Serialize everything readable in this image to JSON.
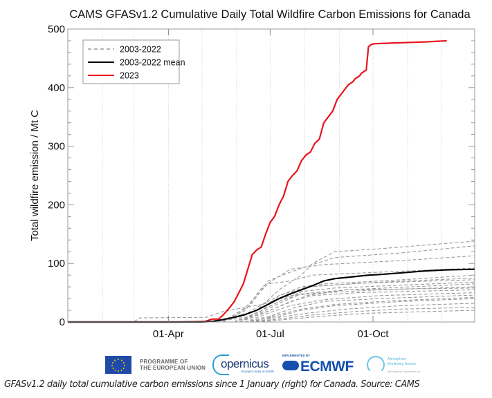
{
  "chart_data": {
    "type": "line",
    "title": "CAMS GFASv1.2 Cumulative Daily Total Wildfire Carbon Emissions for Canada",
    "xlabel": "",
    "ylabel": "Total wildfire emission / Mt C",
    "xlim": [
      1,
      365
    ],
    "ylim": [
      0,
      500
    ],
    "x_unit": "day of year",
    "yticks": [
      0,
      100,
      200,
      300,
      400,
      500
    ],
    "ytick_labels": [
      "0",
      "100",
      "200",
      "300",
      "400",
      "500"
    ],
    "xticks": [
      91,
      182,
      274
    ],
    "xtick_labels": [
      "01-Apr",
      "01-Jul",
      "01-Oct"
    ],
    "grid": true,
    "legend_position": "top-left",
    "legend": [
      {
        "label": "2003-2022",
        "style": "dashed",
        "color": "#888888"
      },
      {
        "label": "2003-2022 mean",
        "style": "solid",
        "color": "#000000"
      },
      {
        "label": "2023",
        "style": "solid",
        "color": "#e8141c"
      }
    ],
    "series": [
      {
        "name": "2023",
        "color": "#e8141c",
        "x": [
          1,
          60,
          100,
          124,
          130,
          136,
          140,
          146,
          150,
          154,
          158,
          162,
          166,
          170,
          174,
          178,
          182,
          186,
          190,
          194,
          198,
          202,
          206,
          210,
          214,
          218,
          222,
          226,
          230,
          234,
          238,
          242,
          246,
          250,
          252,
          256,
          258,
          262,
          264,
          268,
          270,
          273,
          276,
          290,
          320,
          340
        ],
        "values": [
          0,
          0,
          0,
          1,
          5,
          5,
          12,
          25,
          35,
          50,
          65,
          90,
          115,
          123,
          128,
          150,
          170,
          180,
          200,
          215,
          240,
          250,
          258,
          275,
          285,
          290,
          305,
          312,
          340,
          350,
          360,
          380,
          390,
          400,
          405,
          410,
          415,
          420,
          425,
          430,
          470,
          474,
          475,
          476,
          478,
          480
        ]
      },
      {
        "name": "2003-2022 mean",
        "color": "#000000",
        "x": [
          1,
          120,
          130,
          140,
          150,
          160,
          170,
          180,
          190,
          200,
          210,
          220,
          230,
          240,
          250,
          260,
          270,
          280,
          300,
          320,
          340,
          365
        ],
        "values": [
          0,
          0,
          1,
          4,
          8,
          13,
          20,
          30,
          40,
          48,
          55,
          62,
          70,
          74,
          76,
          78,
          80,
          81,
          84,
          87,
          89,
          90
        ]
      },
      {
        "name": "2003-2022",
        "style": "dashed",
        "x": [
          1,
          60,
          65,
          125,
          140,
          160,
          175,
          200,
          230,
          280,
          365
        ],
        "values": [
          0,
          0,
          7,
          8,
          18,
          25,
          30,
          45,
          50,
          55,
          60
        ]
      },
      {
        "name": "2003-2022",
        "style": "dashed",
        "x": [
          1,
          130,
          150,
          170,
          190,
          210,
          220,
          240,
          280,
          365
        ],
        "values": [
          0,
          0,
          5,
          20,
          55,
          80,
          100,
          120,
          125,
          138
        ]
      },
      {
        "name": "2003-2022",
        "style": "dashed",
        "x": [
          1,
          130,
          150,
          165,
          180,
          200,
          215,
          240,
          300,
          365
        ],
        "values": [
          0,
          0,
          10,
          30,
          70,
          85,
          95,
          110,
          118,
          130
        ]
      },
      {
        "name": "2003-2022",
        "style": "dashed",
        "x": [
          1,
          140,
          160,
          175,
          200,
          230,
          300,
          365
        ],
        "values": [
          0,
          0,
          20,
          60,
          90,
          98,
          105,
          113
        ]
      },
      {
        "name": "2003-2022",
        "style": "dashed",
        "x": [
          1,
          140,
          160,
          180,
          200,
          220,
          280,
          365
        ],
        "values": [
          0,
          0,
          25,
          65,
          70,
          80,
          85,
          92
        ]
      },
      {
        "name": "2003-2022",
        "style": "dashed",
        "x": [
          1,
          150,
          170,
          190,
          210,
          230,
          300,
          365
        ],
        "values": [
          0,
          0,
          25,
          45,
          60,
          65,
          72,
          80
        ]
      },
      {
        "name": "2003-2022",
        "style": "dashed",
        "x": [
          1,
          150,
          170,
          190,
          205,
          215,
          280,
          365
        ],
        "values": [
          0,
          0,
          15,
          35,
          45,
          60,
          68,
          75
        ]
      },
      {
        "name": "2003-2022",
        "style": "dashed",
        "x": [
          1,
          150,
          175,
          195,
          210,
          240,
          300,
          365
        ],
        "values": [
          0,
          0,
          20,
          40,
          52,
          58,
          63,
          68
        ]
      },
      {
        "name": "2003-2022",
        "style": "dashed",
        "x": [
          1,
          155,
          175,
          195,
          215,
          250,
          365
        ],
        "values": [
          0,
          0,
          15,
          30,
          45,
          55,
          65
        ]
      },
      {
        "name": "2003-2022",
        "style": "dashed",
        "x": [
          1,
          155,
          180,
          200,
          220,
          260,
          365
        ],
        "values": [
          0,
          0,
          18,
          35,
          45,
          50,
          55
        ]
      },
      {
        "name": "2003-2022",
        "style": "dashed",
        "x": [
          1,
          160,
          180,
          200,
          230,
          280,
          365
        ],
        "values": [
          0,
          0,
          15,
          28,
          38,
          45,
          50
        ]
      },
      {
        "name": "2003-2022",
        "style": "dashed",
        "x": [
          1,
          160,
          185,
          205,
          230,
          280,
          365
        ],
        "values": [
          0,
          0,
          12,
          25,
          35,
          40,
          46
        ]
      },
      {
        "name": "2003-2022",
        "style": "dashed",
        "x": [
          1,
          160,
          190,
          210,
          240,
          300,
          365
        ],
        "values": [
          0,
          0,
          10,
          20,
          28,
          35,
          40
        ]
      },
      {
        "name": "2003-2022",
        "style": "dashed",
        "x": [
          1,
          165,
          190,
          215,
          250,
          300,
          365
        ],
        "values": [
          0,
          0,
          8,
          15,
          22,
          28,
          32
        ]
      },
      {
        "name": "2003-2022",
        "style": "dashed",
        "x": [
          1,
          165,
          195,
          220,
          260,
          300,
          365
        ],
        "values": [
          0,
          0,
          6,
          12,
          18,
          22,
          25
        ]
      },
      {
        "name": "2003-2022",
        "style": "dashed",
        "x": [
          1,
          170,
          200,
          230,
          270,
          365
        ],
        "values": [
          0,
          0,
          5,
          10,
          15,
          20
        ]
      },
      {
        "name": "2003-2022",
        "style": "dashed",
        "x": [
          1,
          155,
          175,
          190,
          215,
          260,
          365
        ],
        "values": [
          0,
          0,
          20,
          45,
          60,
          66,
          72
        ]
      },
      {
        "name": "2003-2022",
        "style": "dashed",
        "x": [
          1,
          150,
          170,
          190,
          210,
          250,
          365
        ],
        "values": [
          0,
          0,
          12,
          32,
          48,
          55,
          58
        ]
      },
      {
        "name": "2003-2022",
        "style": "dashed",
        "x": [
          1,
          165,
          185,
          210,
          240,
          290,
          365
        ],
        "values": [
          0,
          0,
          10,
          22,
          30,
          36,
          42
        ]
      }
    ]
  },
  "logos": {
    "eu_text_line1": "PROGRAMME OF",
    "eu_text_line2": "THE EUROPEAN UNION",
    "copernicus": "opernicus",
    "copernicus_sub": "Europe's eyes on Earth",
    "ecmwf_impl": "IMPLEMENTED BY",
    "ecmwf": "ECMWF",
    "ams_line1": "Atmosphere",
    "ams_line2": "Monitoring Service",
    "ams_url": "atmosphere.copernicus.eu"
  },
  "caption": "GFASv1.2 daily total cumulative carbon emissions since 1 January (right) for Canada. Source: CAMS"
}
